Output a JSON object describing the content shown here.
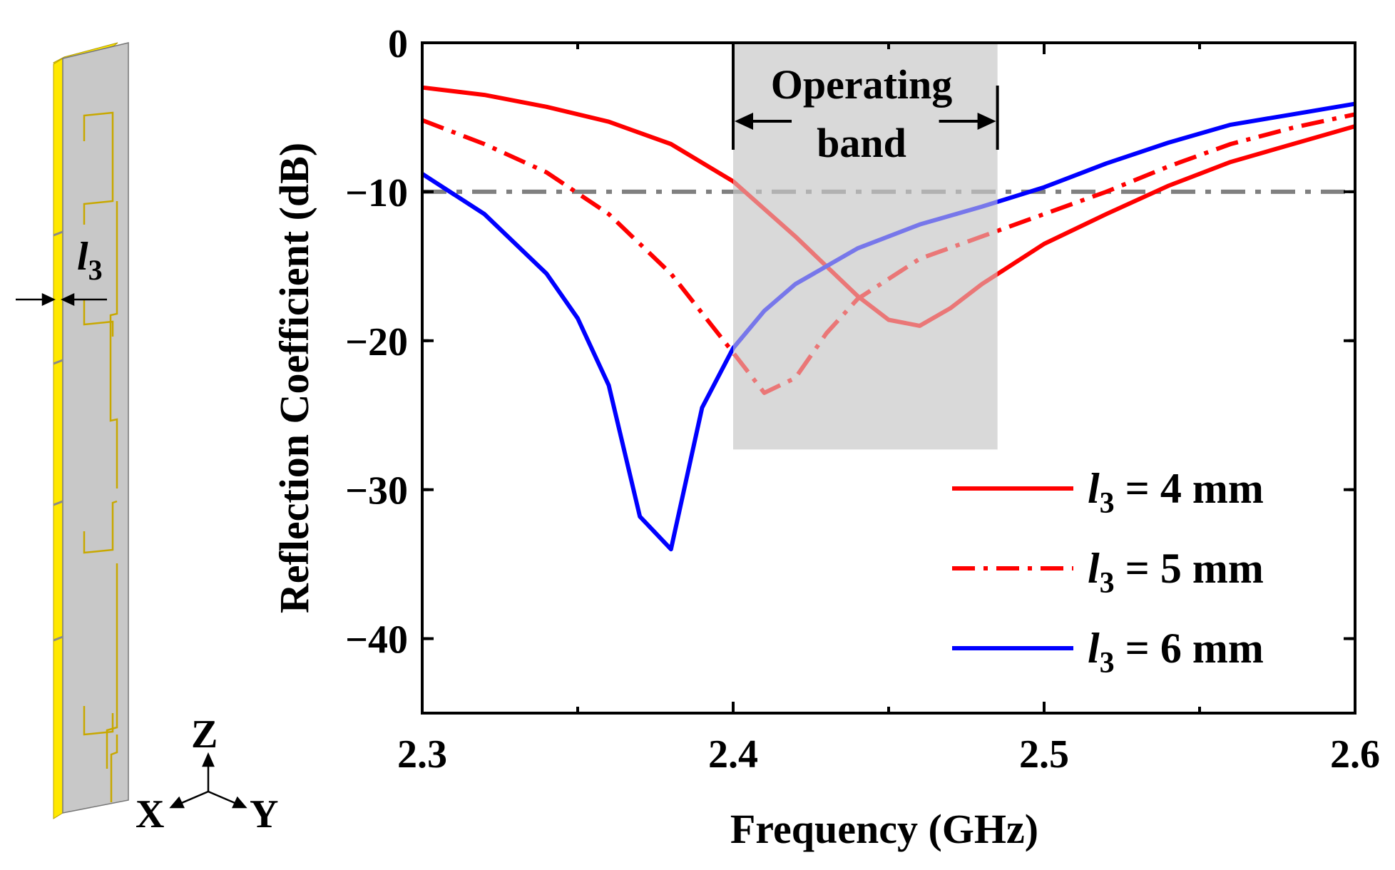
{
  "figure": {
    "antenna_inset": {
      "dimension_label": "l",
      "dimension_subscript": "3",
      "axes": {
        "z": "Z",
        "x": "X",
        "y": "Y"
      }
    }
  },
  "chart_data": {
    "type": "line",
    "xlabel": "Frequency (GHz)",
    "ylabel": "Reflection Coefficient (dB)",
    "xlim": [
      2.3,
      2.6
    ],
    "ylim": [
      -45,
      0
    ],
    "xticks": [
      2.3,
      2.4,
      2.5,
      2.6
    ],
    "xtick_labels": [
      "2.3",
      "2.4",
      "2.5",
      "2.6"
    ],
    "yticks": [
      0,
      -10,
      -20,
      -30,
      -40
    ],
    "ytick_labels": [
      "0",
      "−10",
      "−20",
      "−30",
      "−40"
    ],
    "threshold": {
      "y": -10,
      "color": "#808080",
      "style": "dash-dot"
    },
    "band": {
      "label_line1": "Operating",
      "label_line2": "band",
      "x_start": 2.4,
      "x_end": 2.485,
      "y_bottom": -27.3,
      "color": "#d9d9d9"
    },
    "legend_position": "bottom-right",
    "series": [
      {
        "name": "l3 = 4 mm",
        "legend_prefix": "l",
        "legend_sub": "3",
        "legend_suffix": " = 4 mm",
        "color": "#ff0000",
        "style": "solid",
        "x": [
          2.3,
          2.32,
          2.34,
          2.36,
          2.38,
          2.4,
          2.42,
          2.44,
          2.45,
          2.46,
          2.47,
          2.48,
          2.5,
          2.52,
          2.54,
          2.56,
          2.58,
          2.6
        ],
        "y": [
          -3.0,
          -3.5,
          -4.3,
          -5.3,
          -6.8,
          -9.3,
          -13.0,
          -17.0,
          -18.6,
          -19.0,
          -17.8,
          -16.2,
          -13.5,
          -11.5,
          -9.6,
          -8.0,
          -6.8,
          -5.6
        ]
      },
      {
        "name": "l3 = 5 mm",
        "legend_prefix": "l",
        "legend_sub": "3",
        "legend_suffix": " = 5 mm",
        "color": "#ff0000",
        "style": "dash-dot",
        "x": [
          2.3,
          2.32,
          2.34,
          2.36,
          2.38,
          2.4,
          2.41,
          2.42,
          2.43,
          2.44,
          2.46,
          2.48,
          2.5,
          2.52,
          2.54,
          2.56,
          2.58,
          2.6
        ],
        "y": [
          -5.2,
          -6.8,
          -8.7,
          -11.5,
          -15.5,
          -20.8,
          -23.5,
          -22.5,
          -19.5,
          -17.2,
          -14.5,
          -13.0,
          -11.5,
          -10.0,
          -8.3,
          -6.8,
          -5.7,
          -4.8
        ]
      },
      {
        "name": "l3 = 6 mm",
        "legend_prefix": "l",
        "legend_sub": "3",
        "legend_suffix": " = 6 mm",
        "color": "#0000ff",
        "style": "solid",
        "x": [
          2.3,
          2.32,
          2.34,
          2.35,
          2.36,
          2.37,
          2.38,
          2.39,
          2.4,
          2.41,
          2.42,
          2.44,
          2.46,
          2.48,
          2.5,
          2.52,
          2.54,
          2.56,
          2.58,
          2.6
        ],
        "y": [
          -8.8,
          -11.5,
          -15.5,
          -18.5,
          -23.0,
          -31.8,
          -34.0,
          -24.5,
          -20.5,
          -18.0,
          -16.2,
          -13.8,
          -12.2,
          -11.0,
          -9.7,
          -8.1,
          -6.7,
          -5.5,
          -4.8,
          -4.1
        ]
      }
    ]
  }
}
